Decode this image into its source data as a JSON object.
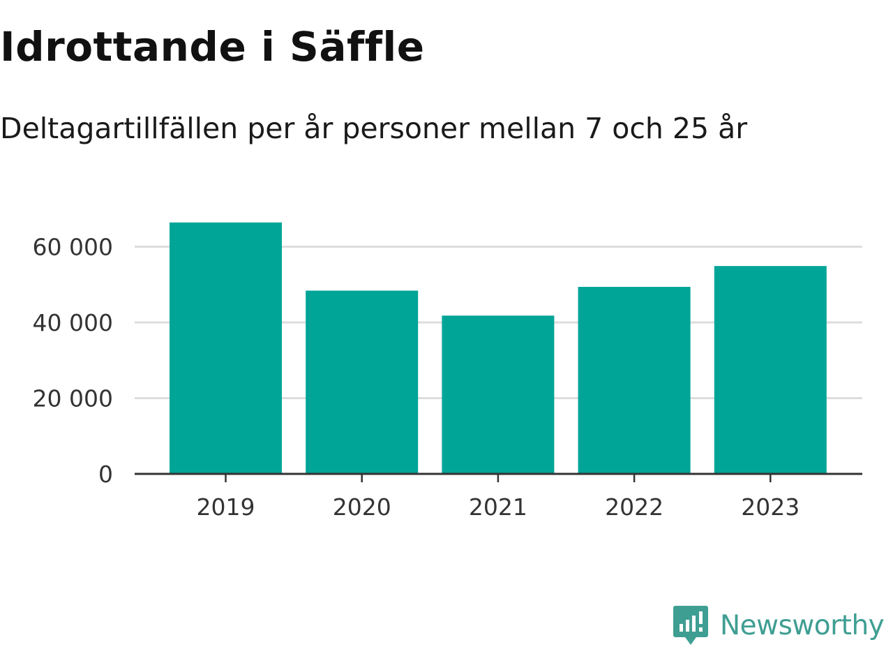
{
  "colors": {
    "bar": "#00a598",
    "grid": "#dddddd",
    "axis": "#333333",
    "brand": "#3f9e92"
  },
  "chart_data": {
    "type": "bar",
    "title": "Idrottande i Säffle",
    "subtitle": "Deltagartillfällen per år personer mellan 7 och 25 år",
    "xlabel": "",
    "ylabel": "",
    "categories": [
      "2019",
      "2020",
      "2021",
      "2022",
      "2023"
    ],
    "values": [
      66400,
      48400,
      41800,
      49400,
      54900
    ],
    "ylim": [
      0,
      70000
    ],
    "yticks": [
      0,
      20000,
      40000,
      60000
    ],
    "ytick_labels": [
      "0",
      "20 000",
      "40 000",
      "60 000"
    ],
    "grid": true,
    "legend": "none"
  },
  "brand": {
    "name": "Newsworthy",
    "logo_icon": "newsworthy-logo-icon"
  }
}
